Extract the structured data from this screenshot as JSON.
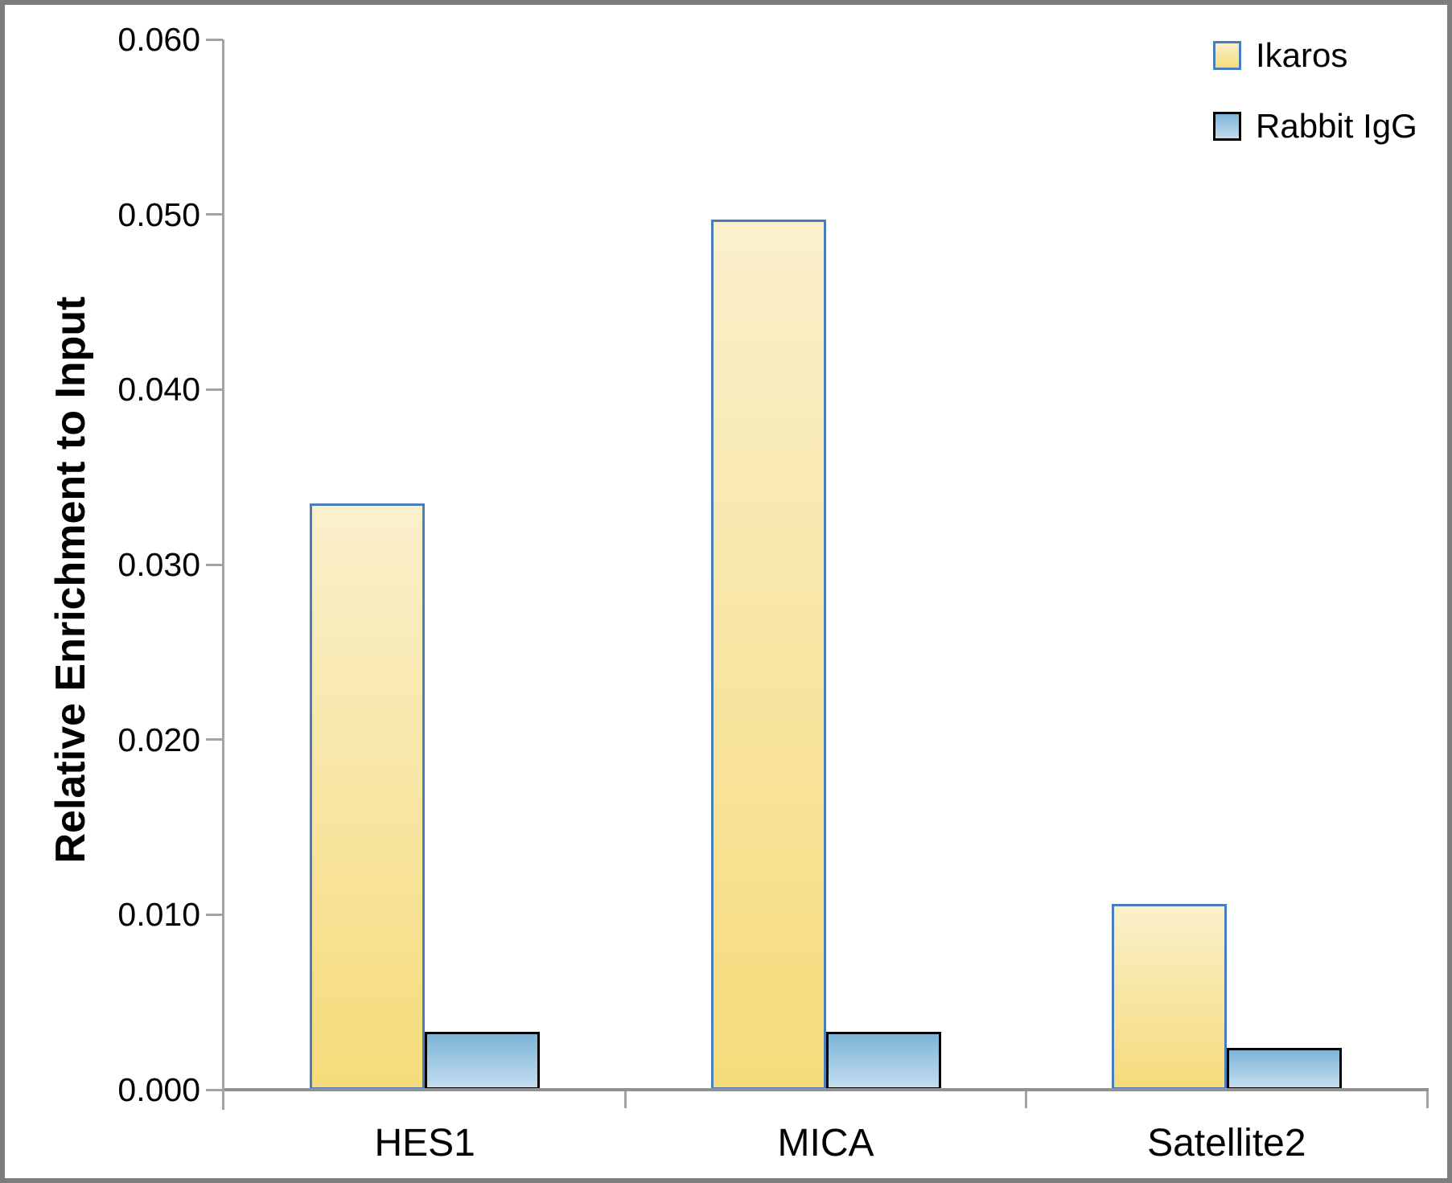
{
  "chart_data": {
    "type": "bar",
    "categories": [
      "HES1",
      "MICA",
      "Satellite2"
    ],
    "series": [
      {
        "name": "Ikaros",
        "values": [
          0.0335,
          0.0497,
          0.0106
        ]
      },
      {
        "name": "Rabbit IgG",
        "values": [
          0.0033,
          0.0033,
          0.0024
        ]
      }
    ],
    "title": "",
    "xlabel": "",
    "ylabel": "Relative Enrichment to Input",
    "ylim": [
      0,
      0.06
    ],
    "ytick_step": 0.01,
    "ytick_labels": [
      "0.000",
      "0.010",
      "0.020",
      "0.030",
      "0.040",
      "0.050",
      "0.060"
    ],
    "grid": false,
    "legend_position": "top-right",
    "colors": {
      "ikaros_fill_top": "#FAF0CC",
      "ikaros_fill_bottom": "#F6DB7A",
      "ikaros_border": "#4A7EBB",
      "igg_fill_top": "#7CB4D7",
      "igg_fill_bottom": "#C3DDEF",
      "igg_border": "#000000",
      "axis_line": "#A3A3A3",
      "frame_border": "#7D7D7D"
    }
  },
  "legend": {
    "items": [
      {
        "label": "Ikaros"
      },
      {
        "label": "Rabbit IgG"
      }
    ]
  }
}
